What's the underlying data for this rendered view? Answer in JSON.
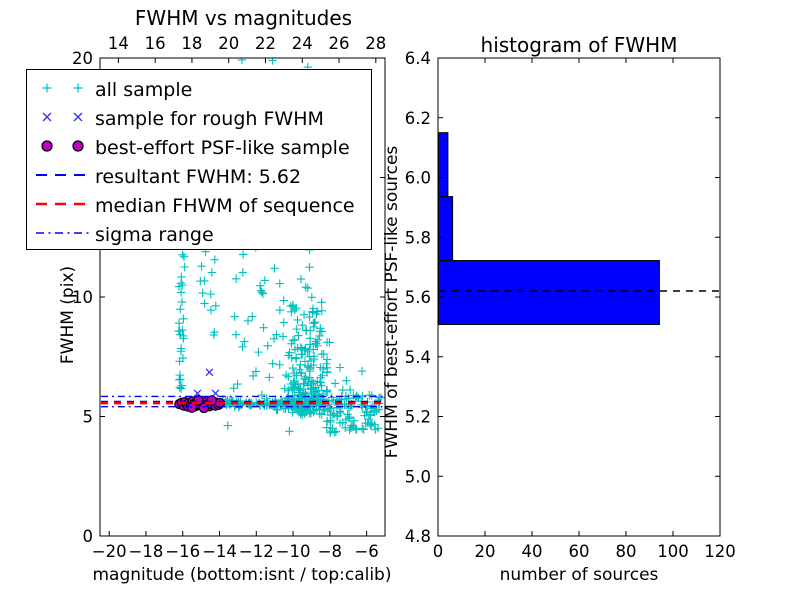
{
  "figure": {
    "background": "#ffffff"
  },
  "left_plot": {
    "title": "FWHM vs magnitudes",
    "xlabel": "magnitude (bottom:isnt / top:calib)",
    "ylabel": "FWHM (pix)"
  },
  "right_plot": {
    "title": "histogram of FWHM",
    "xlabel": "number of sources",
    "ylabel": "FWHM of best-effort PSF-like sources"
  },
  "legend": {
    "items": [
      {
        "label": "all sample",
        "key": "plus-pair",
        "color": "#00bfbf"
      },
      {
        "label": "sample for rough FWHM",
        "key": "x-pair",
        "color": "#3333ff"
      },
      {
        "label": "best-effort PSF-like sample",
        "key": "circle-pair",
        "color": "#bf00bf",
        "edge": "#000000"
      },
      {
        "label": "resultant FWHM: 5.62",
        "key": "dashed-line",
        "color": "#0000ff"
      },
      {
        "label": "median FHWM of sequence",
        "key": "dashed-line",
        "color": "#ff0000"
      },
      {
        "label": "sigma range",
        "key": "dashdot-line",
        "color": "#0000ff"
      }
    ]
  },
  "chart_data": [
    {
      "type": "scatter",
      "title": "FWHM vs magnitudes",
      "xlabel": "magnitude (bottom:isnt / top:calib)",
      "ylabel": "FWHM (pix)",
      "xlim": [
        -20.5,
        -5.0
      ],
      "ylim": [
        0,
        20
      ],
      "x_ticks_bottom": [
        -20,
        -18,
        -16,
        -14,
        -12,
        -10,
        -8,
        -6
      ],
      "x_ticks_top": [
        14,
        16,
        18,
        20,
        22,
        24,
        26,
        28
      ],
      "calib_minus_isnt_offset": 33.5,
      "y_ticks": [
        0,
        5,
        10,
        15,
        20
      ],
      "resultant_fwhm": 5.62,
      "scatter_seed": 11,
      "hlines": [
        {
          "name": "sigma range upper",
          "y": 5.84,
          "color": "#0000ff",
          "style": "dashdot",
          "width": 1.3
        },
        {
          "name": "resultant FWHM",
          "y": 5.62,
          "color": "#0000ff",
          "style": "dashed",
          "width": 1.8
        },
        {
          "name": "median FHWM of sequence",
          "y": 5.56,
          "color": "#ff0000",
          "style": "dashed",
          "width": 2.6
        },
        {
          "name": "sigma range lower",
          "y": 5.41,
          "color": "#0000ff",
          "style": "dashdot",
          "width": 1.3
        }
      ],
      "series": [
        {
          "name": "all sample",
          "marker": "plus",
          "color": "#00bfbf",
          "clusters": [
            {
              "count": 95,
              "x": {
                "min": -16.35,
                "max": -11.0
              },
              "y": {
                "mean": 5.55,
                "sigma": 0.07
              }
            },
            {
              "count": 55,
              "x": {
                "min": -11.0,
                "max": -8.4
              },
              "y": {
                "mean": 5.55,
                "sigma": 0.13
              }
            },
            {
              "count": 60,
              "x": {
                "min": -8.4,
                "max": -5.15
              },
              "y": {
                "mean": 5.57,
                "sigma": 0.36
              }
            },
            {
              "count": 24,
              "x": {
                "min": -16.22,
                "max": -15.95
              },
              "y": {
                "min": 5.75,
                "max": 10.6
              }
            },
            {
              "count": 4,
              "x": {
                "min": -16.1,
                "max": -15.8
              },
              "y": {
                "min": 10.6,
                "max": 12.3
              }
            },
            {
              "count": 13,
              "x": {
                "min": -15.05,
                "max": -14.2
              },
              "y": {
                "min": 7.6,
                "max": 12.2
              }
            },
            {
              "count": 28,
              "x": {
                "min": -13.45,
                "max": -11.0
              },
              "y": {
                "min": 5.85,
                "max": 13.0
              }
            },
            {
              "count": 8,
              "x": {
                "min": -13.0,
                "max": -10.6
              },
              "y": {
                "min": 13.0,
                "max": 19.8
              }
            },
            {
              "count": 230,
              "x": {
                "mean": -9.35,
                "sigma": 0.6,
                "min": -10.9,
                "max": -8.15
              },
              "y": {
                "base": 5.05,
                "fold_sigma": 2.3,
                "max": 19.8
              }
            },
            {
              "count": 14,
              "x": {
                "min": -10.2,
                "max": -8.4
              },
              "y": {
                "min": 12.3,
                "max": 19.5
              }
            },
            {
              "count": 40,
              "x": {
                "min": -8.3,
                "max": -5.3
              },
              "y": {
                "min": 4.25,
                "max": 5.35
              }
            }
          ],
          "points": [
            [
              -11.12,
              19.9
            ],
            [
              -9.2,
              19.62
            ],
            [
              -12.78,
              19.92
            ],
            [
              -13.55,
              4.62
            ],
            [
              -10.2,
              4.38
            ],
            [
              -7.85,
              4.5
            ],
            [
              -6.75,
              4.62
            ],
            [
              -8.02,
              8.1
            ],
            [
              -7.45,
              7.05
            ],
            [
              -6.25,
              6.9
            ],
            [
              -5.85,
              5.9
            ],
            [
              -6.05,
              4.72
            ],
            [
              -5.55,
              5.18
            ],
            [
              -7.1,
              6.5
            ],
            [
              -6.55,
              4.45
            ],
            [
              -12.2,
              13.9
            ],
            [
              -11.7,
              10.2
            ],
            [
              -12.45,
              9.0
            ],
            [
              -9.05,
              18.6
            ],
            [
              -9.5,
              17.2
            ],
            [
              -8.9,
              15.8
            ],
            [
              -9.3,
              14.9
            ],
            [
              -8.75,
              13.8
            ],
            [
              -9.6,
              13.2
            ],
            [
              -9.15,
              16.5
            ],
            [
              -8.6,
              12.6
            ]
          ]
        },
        {
          "name": "sample for rough FWHM",
          "marker": "x",
          "color": "#3333ff",
          "clusters": [],
          "points": [
            [
              -14.55,
              6.85
            ],
            [
              -15.2,
              5.97
            ],
            [
              -14.22,
              5.97
            ],
            [
              -15.9,
              5.58
            ],
            [
              -15.65,
              5.5
            ],
            [
              -15.4,
              5.6
            ],
            [
              -15.1,
              5.46
            ],
            [
              -14.85,
              5.58
            ],
            [
              -14.6,
              5.5
            ],
            [
              -14.32,
              5.56
            ],
            [
              -14.05,
              5.47
            ],
            [
              -15.55,
              5.64
            ],
            [
              -14.72,
              5.42
            ]
          ]
        },
        {
          "name": "best-effort PSF-like sample",
          "marker": "circle",
          "color": "#bf00bf",
          "edge": "#000000",
          "clusters": [],
          "points": [
            [
              -16.18,
              5.52
            ],
            [
              -16.05,
              5.57
            ],
            [
              -15.95,
              5.46
            ],
            [
              -15.88,
              5.6
            ],
            [
              -15.78,
              5.5
            ],
            [
              -15.7,
              5.42
            ],
            [
              -15.62,
              5.58
            ],
            [
              -15.55,
              5.48
            ],
            [
              -15.45,
              5.63
            ],
            [
              -15.38,
              5.52
            ],
            [
              -15.3,
              5.44
            ],
            [
              -15.22,
              5.58
            ],
            [
              -15.12,
              5.5
            ],
            [
              -15.02,
              5.61
            ],
            [
              -14.95,
              5.44
            ],
            [
              -14.88,
              5.55
            ],
            [
              -14.78,
              5.48
            ],
            [
              -14.7,
              5.62
            ],
            [
              -14.62,
              5.52
            ],
            [
              -14.55,
              5.43
            ],
            [
              -14.45,
              5.57
            ],
            [
              -14.38,
              5.5
            ],
            [
              -14.3,
              5.61
            ],
            [
              -14.22,
              5.46
            ],
            [
              -14.12,
              5.54
            ],
            [
              -14.05,
              5.49
            ],
            [
              -13.98,
              5.56
            ],
            [
              -15.5,
              5.37
            ],
            [
              -14.85,
              5.36
            ],
            [
              -15.15,
              5.68
            ],
            [
              -14.42,
              5.67
            ]
          ]
        }
      ]
    },
    {
      "type": "bar",
      "orientation": "horizontal",
      "title": "histogram of FWHM",
      "xlabel": "number of sources",
      "ylabel": "FWHM of best-effort PSF-like sources",
      "xlim": [
        0,
        120
      ],
      "ylim": [
        4.8,
        6.4
      ],
      "x_ticks": [
        0,
        20,
        40,
        60,
        80,
        100,
        120
      ],
      "y_ticks": [
        4.8,
        5.0,
        5.2,
        5.4,
        5.6,
        5.8,
        6.0,
        6.2,
        6.4
      ],
      "bin_edges": [
        5.508,
        5.722,
        5.936,
        6.15
      ],
      "counts": [
        94,
        6,
        4
      ],
      "bar_color": "#0000ff",
      "bar_edge": "#000000",
      "hlines": [
        {
          "name": "resultant FWHM",
          "y": 5.62,
          "color": "#000000",
          "style": "dashed",
          "width": 1.5
        }
      ]
    }
  ]
}
